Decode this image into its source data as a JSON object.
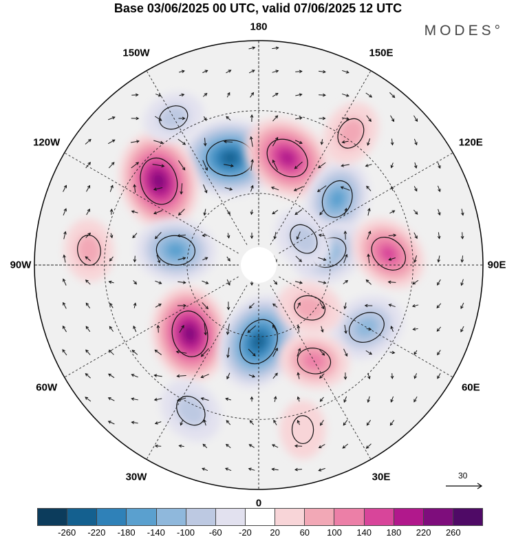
{
  "title": "Base 03/06/2025 00 UTC, valid 07/06/2025 12 UTC",
  "brand": "MODES°",
  "longitude_labels": [
    "180",
    "150E",
    "120E",
    "90E",
    "60E",
    "30E",
    "0",
    "30W",
    "60W",
    "90W",
    "120W",
    "150W"
  ],
  "vector_reference": {
    "value": "30"
  },
  "colorbar": {
    "ticks": [
      "-260",
      "-220",
      "-180",
      "-140",
      "-100",
      "-60",
      "-20",
      "20",
      "60",
      "100",
      "140",
      "180",
      "220",
      "260"
    ],
    "colors": [
      "#0c3c5c",
      "#14608f",
      "#2f81b8",
      "#5aa0cf",
      "#8fb8dc",
      "#bdc9e2",
      "#e2e1ef",
      "#ffffff",
      "#f8d5d8",
      "#f2a8b6",
      "#ec7fa7",
      "#d8459a",
      "#b1188c",
      "#7e0d7c",
      "#4f0a66"
    ]
  },
  "anomalies": [
    {
      "lon": -165,
      "lat": 45,
      "value": -230
    },
    {
      "lon": 165,
      "lat": 45,
      "value": 200
    },
    {
      "lon": -130,
      "lat": 38,
      "value": 230
    },
    {
      "lon": 130,
      "lat": 48,
      "value": -140
    },
    {
      "lon": 100,
      "lat": 60,
      "value": -120
    },
    {
      "lon": -100,
      "lat": 55,
      "value": -150
    },
    {
      "lon": 95,
      "lat": 38,
      "value": 140
    },
    {
      "lon": -45,
      "lat": 50,
      "value": 220
    },
    {
      "lon": 0,
      "lat": 58,
      "value": -220
    },
    {
      "lon": 60,
      "lat": 40,
      "value": -130
    },
    {
      "lon": 30,
      "lat": 45,
      "value": 100
    },
    {
      "lon": -25,
      "lat": 28,
      "value": -90
    },
    {
      "lon": -95,
      "lat": 25,
      "value": 70
    },
    {
      "lon": 145,
      "lat": 28,
      "value": 80
    },
    {
      "lon": -150,
      "lat": 25,
      "value": -60
    },
    {
      "lon": 50,
      "lat": 62,
      "value": 80
    },
    {
      "lon": 120,
      "lat": 68,
      "value": -80
    },
    {
      "lon": 15,
      "lat": 25,
      "value": 50
    }
  ]
}
